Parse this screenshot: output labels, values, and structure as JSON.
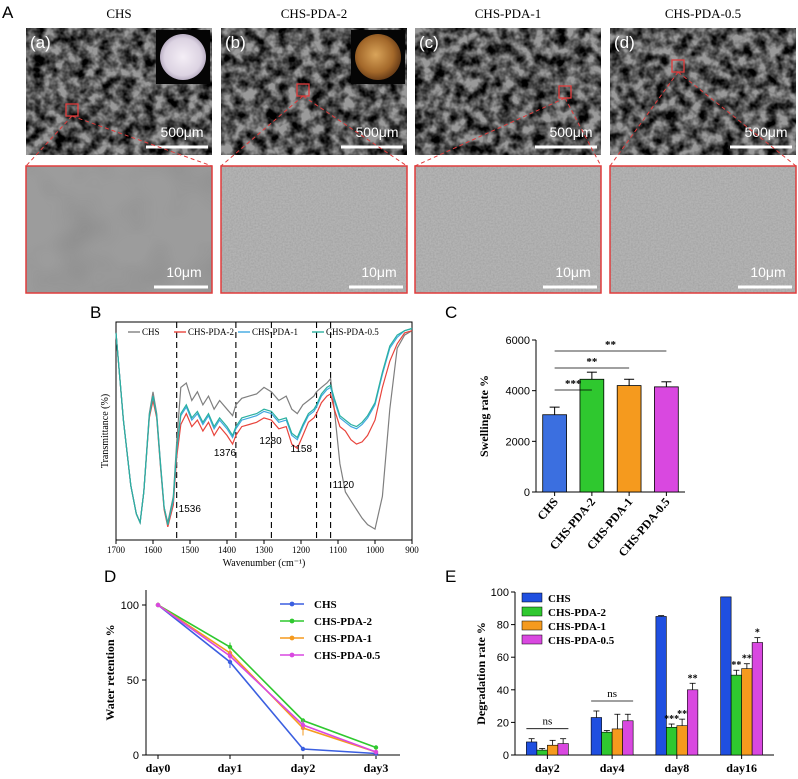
{
  "panel_letters": {
    "A": "A",
    "B": "B",
    "C": "C",
    "D": "D",
    "E": "E"
  },
  "sem": {
    "columns": [
      {
        "title": "CHS",
        "tag": "(a)",
        "scale_top": "500μm",
        "scale_bottom": "10μm",
        "inset": "white-disc"
      },
      {
        "title": "CHS-PDA-2",
        "tag": "(b)",
        "scale_top": "500μm",
        "scale_bottom": "10μm",
        "inset": "brown-disc"
      },
      {
        "title": "CHS-PDA-1",
        "tag": "(c)",
        "scale_top": "500μm",
        "scale_bottom": "10μm",
        "inset": ""
      },
      {
        "title": "CHS-PDA-0.5",
        "tag": "(d)",
        "scale_top": "500μm",
        "scale_bottom": "10μm",
        "inset": ""
      }
    ],
    "highlight_color": "#e03c3c"
  },
  "chart_data": [
    {
      "id": "B",
      "type": "line",
      "xlabel": "Wavenumber (cm⁻¹)",
      "ylabel": "Transmittance (%)",
      "xlim": [
        1700,
        900
      ],
      "x_ticks": [
        1700,
        1600,
        1500,
        1400,
        1300,
        1200,
        1100,
        1000,
        900
      ],
      "reference_lines": [
        1536,
        1376,
        1280,
        1158,
        1120
      ],
      "peak_labels": [
        {
          "text": "1536",
          "x": 1536
        },
        {
          "text": "1376",
          "x": 1376
        },
        {
          "text": "1280",
          "x": 1280
        },
        {
          "text": "1158",
          "x": 1158
        },
        {
          "text": "1120",
          "x": 1120
        }
      ],
      "series": [
        {
          "name": "CHS",
          "color": "#7f7f7f",
          "x": [
            1700,
            1680,
            1660,
            1645,
            1635,
            1625,
            1610,
            1600,
            1590,
            1580,
            1570,
            1560,
            1545,
            1536,
            1525,
            1510,
            1495,
            1480,
            1465,
            1450,
            1435,
            1420,
            1400,
            1385,
            1376,
            1360,
            1340,
            1320,
            1300,
            1280,
            1260,
            1240,
            1225,
            1210,
            1195,
            1180,
            1165,
            1158,
            1145,
            1130,
            1120,
            1110,
            1095,
            1080,
            1065,
            1050,
            1035,
            1020,
            1000,
            980,
            960,
            940,
            920,
            900
          ],
          "y": [
            95,
            55,
            25,
            12,
            8,
            22,
            58,
            68,
            58,
            36,
            15,
            8,
            20,
            45,
            70,
            72,
            64,
            68,
            62,
            66,
            60,
            64,
            60,
            57,
            62,
            65,
            66,
            67,
            70,
            68,
            64,
            66,
            60,
            58,
            62,
            64,
            66,
            68,
            70,
            72,
            74,
            60,
            35,
            22,
            18,
            14,
            10,
            7,
            5,
            20,
            60,
            88,
            94,
            96
          ]
        },
        {
          "name": "CHS-PDA-2",
          "color": "#e8443c",
          "x": [
            1700,
            1680,
            1660,
            1645,
            1635,
            1625,
            1610,
            1600,
            1590,
            1580,
            1570,
            1560,
            1545,
            1536,
            1525,
            1510,
            1495,
            1480,
            1465,
            1450,
            1435,
            1420,
            1400,
            1385,
            1376,
            1360,
            1340,
            1320,
            1300,
            1280,
            1260,
            1240,
            1225,
            1210,
            1195,
            1180,
            1165,
            1158,
            1145,
            1130,
            1120,
            1110,
            1095,
            1080,
            1065,
            1050,
            1035,
            1020,
            1000,
            980,
            960,
            940,
            920,
            900
          ],
          "y": [
            95,
            55,
            25,
            12,
            8,
            22,
            56,
            64,
            56,
            34,
            14,
            6,
            16,
            38,
            53,
            58,
            52,
            55,
            50,
            54,
            48,
            52,
            48,
            44,
            48,
            52,
            53,
            54,
            56,
            55,
            51,
            52,
            44,
            42,
            48,
            54,
            56,
            58,
            63,
            66,
            67,
            60,
            52,
            50,
            46,
            44,
            45,
            48,
            55,
            70,
            82,
            90,
            95,
            96
          ]
        },
        {
          "name": "CHS-PDA-1",
          "color": "#3fa8e0",
          "x": [
            1700,
            1680,
            1660,
            1645,
            1635,
            1625,
            1610,
            1600,
            1590,
            1580,
            1570,
            1560,
            1545,
            1536,
            1525,
            1510,
            1495,
            1480,
            1465,
            1450,
            1435,
            1420,
            1400,
            1385,
            1376,
            1360,
            1340,
            1320,
            1300,
            1280,
            1260,
            1240,
            1225,
            1210,
            1195,
            1180,
            1165,
            1158,
            1145,
            1130,
            1120,
            1110,
            1095,
            1080,
            1065,
            1050,
            1035,
            1020,
            1000,
            980,
            960,
            940,
            920,
            900
          ],
          "y": [
            95,
            55,
            25,
            12,
            8,
            22,
            57,
            66,
            57,
            35,
            15,
            7,
            18,
            41,
            57,
            61,
            55,
            58,
            53,
            57,
            51,
            55,
            51,
            47,
            51,
            55,
            56,
            57,
            59,
            58,
            54,
            55,
            48,
            46,
            52,
            57,
            59,
            61,
            66,
            69,
            70,
            64,
            56,
            54,
            52,
            51,
            53,
            56,
            62,
            76,
            88,
            93,
            96,
            97
          ]
        },
        {
          "name": "CHS-PDA-0.5",
          "color": "#2ab0a0",
          "x": [
            1700,
            1680,
            1660,
            1645,
            1635,
            1625,
            1610,
            1600,
            1590,
            1580,
            1570,
            1560,
            1545,
            1536,
            1525,
            1510,
            1495,
            1480,
            1465,
            1450,
            1435,
            1420,
            1400,
            1385,
            1376,
            1360,
            1340,
            1320,
            1300,
            1280,
            1260,
            1240,
            1225,
            1210,
            1195,
            1180,
            1165,
            1158,
            1145,
            1130,
            1120,
            1110,
            1095,
            1080,
            1065,
            1050,
            1035,
            1020,
            1000,
            980,
            960,
            940,
            920,
            900
          ],
          "y": [
            95,
            55,
            25,
            12,
            8,
            22,
            57,
            66,
            57,
            35,
            15,
            7,
            19,
            42,
            58,
            62,
            56,
            59,
            54,
            58,
            52,
            56,
            52,
            48,
            52,
            56,
            57,
            58,
            60,
            59,
            55,
            56,
            49,
            47,
            53,
            58,
            60,
            62,
            67,
            70,
            71,
            65,
            57,
            55,
            53,
            52,
            54,
            57,
            63,
            77,
            89,
            94,
            96,
            97
          ]
        }
      ]
    },
    {
      "id": "C",
      "type": "bar",
      "ylabel": "Swelling rate %",
      "ylim": [
        0,
        6000
      ],
      "y_ticks": [
        0,
        2000,
        4000,
        6000
      ],
      "categories": [
        "CHS",
        "CHS-PDA-2",
        "CHS-PDA-1",
        "CHS-PDA-0.5"
      ],
      "values": [
        3050,
        4450,
        4200,
        4150
      ],
      "errors": [
        300,
        280,
        250,
        200
      ],
      "colors": [
        "#3b6fe0",
        "#2fc82f",
        "#f59a1e",
        "#d948e0"
      ],
      "significance": [
        {
          "from": 0,
          "to": 1,
          "label": "***"
        },
        {
          "from": 0,
          "to": 2,
          "label": "**"
        },
        {
          "from": 0,
          "to": 3,
          "label": "**"
        }
      ]
    },
    {
      "id": "D",
      "type": "line",
      "ylabel": "Water retention %",
      "categories": [
        "day0",
        "day1",
        "day2",
        "day3"
      ],
      "ylim": [
        0,
        110
      ],
      "y_ticks": [
        0,
        50,
        100
      ],
      "series": [
        {
          "name": "CHS",
          "color": "#3b5fe0",
          "values": [
            100,
            62,
            4,
            1
          ],
          "errors": [
            0,
            4,
            0,
            0
          ]
        },
        {
          "name": "CHS-PDA-2",
          "color": "#2fc82f",
          "values": [
            100,
            72,
            23,
            5
          ],
          "errors": [
            0,
            3,
            0,
            1
          ]
        },
        {
          "name": "CHS-PDA-1",
          "color": "#f59a1e",
          "values": [
            100,
            68,
            18,
            2
          ],
          "errors": [
            0,
            3,
            5,
            0
          ]
        },
        {
          "name": "CHS-PDA-0.5",
          "color": "#d948e0",
          "values": [
            100,
            66,
            20,
            2
          ],
          "errors": [
            0,
            3,
            3,
            0
          ]
        }
      ]
    },
    {
      "id": "E",
      "type": "bar",
      "ylabel": "Degradation rate %",
      "categories": [
        "day2",
        "day4",
        "day8",
        "day16"
      ],
      "ylim": [
        0,
        100
      ],
      "y_ticks": [
        0,
        20,
        40,
        60,
        80,
        100
      ],
      "series": [
        {
          "name": "CHS",
          "color": "#1f4fe0",
          "values": [
            8,
            23,
            85,
            97
          ],
          "errors": [
            2,
            4,
            0.5,
            0
          ]
        },
        {
          "name": "CHS-PDA-2",
          "color": "#2fc82f",
          "values": [
            3,
            14,
            17,
            49
          ],
          "errors": [
            1,
            1,
            2,
            3
          ]
        },
        {
          "name": "CHS-PDA-1",
          "color": "#f59a1e",
          "values": [
            6,
            16,
            18,
            53
          ],
          "errors": [
            3,
            9,
            4,
            3
          ]
        },
        {
          "name": "CHS-PDA-0.5",
          "color": "#d948e0",
          "values": [
            7,
            21,
            40,
            69
          ],
          "errors": [
            3,
            4,
            4,
            3
          ]
        }
      ],
      "group_brackets": [
        {
          "category": 0,
          "label": "ns"
        },
        {
          "category": 1,
          "label": "ns"
        }
      ],
      "bar_stars": [
        {
          "category": 2,
          "series": 1,
          "label": "***"
        },
        {
          "category": 2,
          "series": 2,
          "label": "**"
        },
        {
          "category": 2,
          "series": 3,
          "label": "**"
        },
        {
          "category": 3,
          "series": 1,
          "label": "**"
        },
        {
          "category": 3,
          "series": 2,
          "label": "**"
        },
        {
          "category": 3,
          "series": 3,
          "label": "*"
        }
      ]
    }
  ]
}
